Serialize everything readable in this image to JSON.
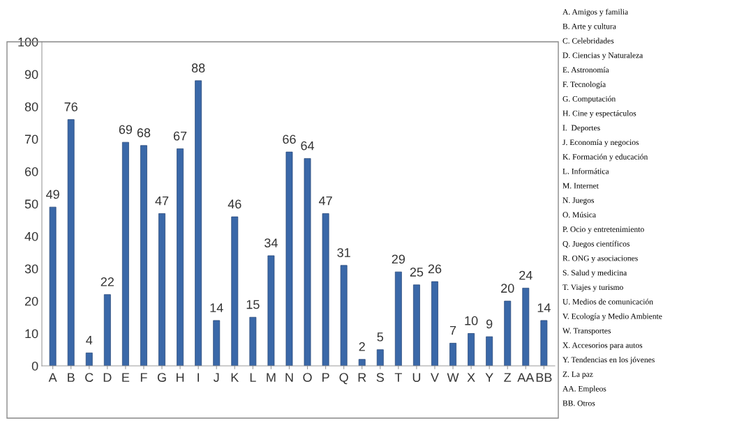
{
  "chart_data": {
    "type": "bar",
    "categories": [
      "A",
      "B",
      "C",
      "D",
      "E",
      "F",
      "G",
      "H",
      "I",
      "J",
      "K",
      "L",
      "M",
      "N",
      "O",
      "P",
      "Q",
      "R",
      "S",
      "T",
      "U",
      "V",
      "W",
      "X",
      "Y",
      "Z",
      "AA",
      "BB"
    ],
    "values": [
      49,
      76,
      4,
      22,
      69,
      68,
      47,
      67,
      88,
      14,
      46,
      15,
      34,
      66,
      64,
      47,
      31,
      2,
      5,
      29,
      25,
      26,
      7,
      10,
      9,
      20,
      24,
      14
    ],
    "color": "#3a68a8",
    "ylim": [
      0,
      100
    ],
    "yticks": [
      0,
      10,
      20,
      30,
      40,
      50,
      60,
      70,
      80,
      90,
      100
    ],
    "grid": false,
    "data_labels": true,
    "annotations": [
      "A. Amigos y familia",
      "B. Arte y cultura",
      "C. Celebridades",
      "D. Ciencias y Naturaleza",
      "E. Astronomía",
      "F. Tecnología",
      "G. Computación",
      "H. Cine y espectáculos",
      "I.  Deportes",
      "J. Economía y negocios",
      "K. Formación y educación",
      "L. Informática",
      "M. Internet",
      "N. Juegos",
      "O. Música",
      "P. Ocio y entretenimiento",
      "Q. Juegos científicos",
      "R. ONG y asociaciones",
      "S. Salud y medicina",
      "T. Viajes y turismo",
      "U. Medios de comunicación",
      "V. Ecología y Medio Ambiente",
      "W. Transportes",
      "X. Accesorios para autos",
      "Y. Tendencias en los jóvenes",
      "Z. La paz",
      "AA. Empleos",
      "BB. Otros"
    ]
  }
}
